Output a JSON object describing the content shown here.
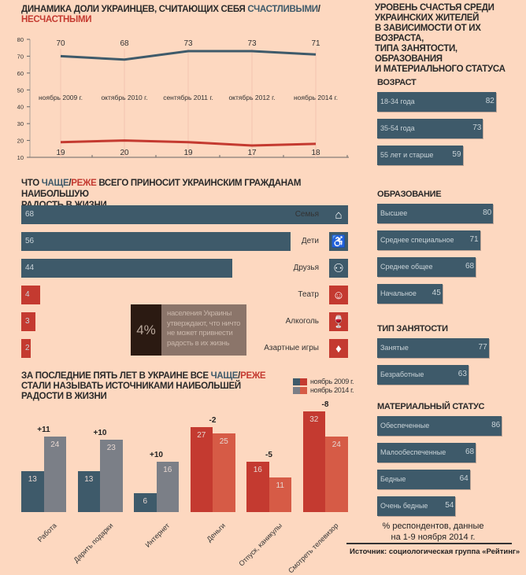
{
  "colors": {
    "background": "#fdd8c0",
    "happy": "#3e5a6a",
    "unhappy": "#c43a30",
    "grey": "#7b7f87",
    "light_red": "#d65b46",
    "dark": "#2b1a12",
    "box": "#8b756a"
  },
  "chart_data": [
    {
      "type": "line",
      "title_parts": [
        "ДИНАМИКА ДОЛИ УКРАИНЦЕВ, СЧИТАЮЩИХ СЕБЯ ",
        "СЧАСТЛИВЫМИ",
        "/",
        "НЕСЧАСТНЫМИ"
      ],
      "categories": [
        "ноябрь 2009 г.",
        "октябрь 2010 г.",
        "сентябрь 2011 г.",
        "октябрь 2012 г.",
        "ноябрь 2014 г."
      ],
      "series": [
        {
          "name": "СЧАСТЛИВЫМИ",
          "values": [
            70,
            68,
            73,
            73,
            71
          ],
          "color": "#3e5a6a"
        },
        {
          "name": "НЕСЧАСТНЫМИ",
          "values": [
            19,
            20,
            19,
            17,
            18
          ],
          "color": "#c43a30"
        }
      ],
      "ylim": [
        10,
        80
      ],
      "yticks": [
        "10",
        "20",
        "30",
        "40",
        "50",
        "60",
        "70",
        "80"
      ],
      "grid": "vertical"
    },
    {
      "type": "bar",
      "orientation": "horizontal",
      "title_parts": [
        "ЧТО ",
        "ЧАЩЕ",
        "/",
        "РЕЖЕ",
        " ВСЕГО ПРИНОСИТ УКРАИНСКИМ ГРАЖДАНАМ НАИБОЛЬШУЮ",
        "РАДОСТЬ В ЖИЗНИ"
      ],
      "items": [
        {
          "label": "Семья",
          "value": 68,
          "icon": "house-icon",
          "color": "happy"
        },
        {
          "label": "Дети",
          "value": 56,
          "icon": "stroller-icon",
          "color": "happy"
        },
        {
          "label": "Друзья",
          "value": 44,
          "icon": "friends-icon",
          "color": "happy"
        },
        {
          "label": "Театр",
          "value": 4,
          "icon": "theatre-masks-icon",
          "color": "unhappy"
        },
        {
          "label": "Алкоголь",
          "value": 3,
          "icon": "bottle-glass-icon",
          "color": "unhappy"
        },
        {
          "label": "Азартные игры",
          "value": 2,
          "icon": "playing-cards-icon",
          "color": "unhappy"
        }
      ],
      "callout": {
        "value": "4%",
        "lines": [
          "населения Украины",
          "утверждают, что ничто",
          "не может привнести",
          "радость в их жизнь"
        ]
      }
    },
    {
      "type": "bar",
      "title_parts": [
        "ЗА ПОСЛЕДНИЕ ПЯТЬ ЛЕТ В УКРАИНЕ ВСЕ ",
        "ЧАЩЕ",
        "/",
        "РЕЖЕ",
        "СТАЛИ НАЗЫВАТЬ ИСТОЧНИКАМИ НАИБОЛЬШЕЙ РАДОСТИ В ЖИЗНИ"
      ],
      "legend": [
        "ноябрь 2009 г.",
        "ноябрь 2014 г."
      ],
      "legend_placement": "top-right",
      "categories": [
        "Работа",
        "Дарить подарки",
        "Интернет",
        "Деньги",
        "Отпуск, каникулы",
        "Смотреть телевизор"
      ],
      "series": [
        {
          "name": "ноябрь 2009 г.",
          "values": [
            13,
            13,
            6,
            27,
            16,
            32
          ]
        },
        {
          "name": "ноябрь 2014 г.",
          "values": [
            24,
            23,
            16,
            25,
            11,
            24
          ]
        }
      ],
      "deltas": [
        "+11",
        "+10",
        "+10",
        "-2",
        "-5",
        "-8"
      ],
      "ylim": [
        0,
        32
      ]
    },
    {
      "type": "bar",
      "orientation": "horizontal",
      "title_lines": [
        "УРОВЕНЬ СЧАСТЬЯ СРЕДИ",
        "УКРАИНСКИХ ЖИТЕЛЕЙ",
        "В ЗАВИСИМОСТИ ОТ ИХ ВОЗРАСТА,",
        "ТИПА ЗАНЯТОСТИ, ОБРАЗОВАНИЯ",
        "И МАТЕРИАЛЬНОГО СТАТУСА"
      ],
      "groups": [
        {
          "title": "ВОЗРАСТ",
          "items": [
            {
              "label": "18-34 года",
              "value": 82
            },
            {
              "label": "35-54 года",
              "value": 73
            },
            {
              "label": "55 лет и старше",
              "value": 59
            }
          ]
        },
        {
          "title": "ОБРАЗОВАНИЕ",
          "items": [
            {
              "label": "Высшее",
              "value": 80
            },
            {
              "label": "Среднее специальное",
              "value": 71
            },
            {
              "label": "Среднее общее",
              "value": 68
            },
            {
              "label": "Начальное",
              "value": 45
            }
          ]
        },
        {
          "title": "ТИП ЗАНЯТОСТИ",
          "items": [
            {
              "label": "Занятые",
              "value": 77
            },
            {
              "label": "Безработные",
              "value": 63
            }
          ]
        },
        {
          "title": "МАТЕРИАЛЬНЫЙ СТАТУС",
          "items": [
            {
              "label": "Обеспеченные",
              "value": 86
            },
            {
              "label": "Малообеспеченные",
              "value": 68
            },
            {
              "label": "Бедные",
              "value": 64
            },
            {
              "label": "Очень бедные",
              "value": 54
            }
          ]
        }
      ]
    }
  ],
  "footnote": [
    "% респондентов, данные",
    "на 1-9 ноября 2014 г."
  ],
  "source": "Источник: социологическая группа «Рейтинг»"
}
